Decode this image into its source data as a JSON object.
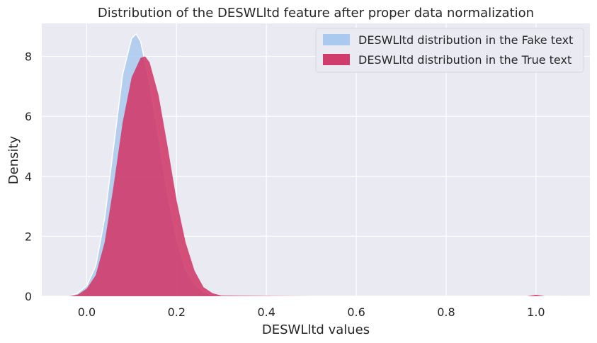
{
  "chart_data": {
    "type": "area",
    "title": "Distribution of the DESWLltd feature after proper data normalization",
    "xlabel": "DESWLltd values",
    "ylabel": "Density",
    "xlim": [
      -0.1,
      1.12
    ],
    "ylim": [
      0,
      9.1
    ],
    "xticks": [
      0.0,
      0.2,
      0.4,
      0.6,
      0.8,
      1.0
    ],
    "xtick_labels": [
      "0.0",
      "0.2",
      "0.4",
      "0.6",
      "0.8",
      "1.0"
    ],
    "yticks": [
      0,
      2,
      4,
      6,
      8
    ],
    "ytick_labels": [
      "0",
      "2",
      "4",
      "6",
      "8"
    ],
    "grid": true,
    "legend_position": "top-right",
    "series": [
      {
        "name": "DESWLltd distribution in the Fake text",
        "color": "#a9c9ef",
        "x": [
          -0.04,
          -0.02,
          0.0,
          0.02,
          0.04,
          0.06,
          0.08,
          0.1,
          0.11,
          0.12,
          0.14,
          0.16,
          0.18,
          0.2,
          0.22,
          0.24,
          0.26,
          0.28,
          0.3,
          0.5,
          0.8,
          0.98,
          1.0,
          1.02,
          1.06
        ],
        "y": [
          0.0,
          0.1,
          0.35,
          1.0,
          2.6,
          5.0,
          7.4,
          8.6,
          8.75,
          8.5,
          7.1,
          5.3,
          3.4,
          1.9,
          0.9,
          0.4,
          0.15,
          0.05,
          0.01,
          0.0,
          0.0,
          0.0,
          0.03,
          0.0,
          0.0
        ]
      },
      {
        "name": "DESWLltd distribution in the True text",
        "color": "#d03d6c",
        "x": [
          -0.04,
          -0.02,
          0.0,
          0.02,
          0.04,
          0.06,
          0.08,
          0.1,
          0.12,
          0.13,
          0.14,
          0.16,
          0.18,
          0.2,
          0.22,
          0.24,
          0.26,
          0.28,
          0.3,
          0.5,
          0.8,
          0.98,
          1.0,
          1.02,
          1.06
        ],
        "y": [
          0.0,
          0.05,
          0.25,
          0.7,
          1.8,
          3.7,
          5.8,
          7.3,
          7.95,
          8.0,
          7.8,
          6.7,
          5.0,
          3.2,
          1.8,
          0.85,
          0.3,
          0.1,
          0.02,
          0.0,
          0.0,
          0.0,
          0.05,
          0.0,
          0.0
        ]
      }
    ]
  }
}
